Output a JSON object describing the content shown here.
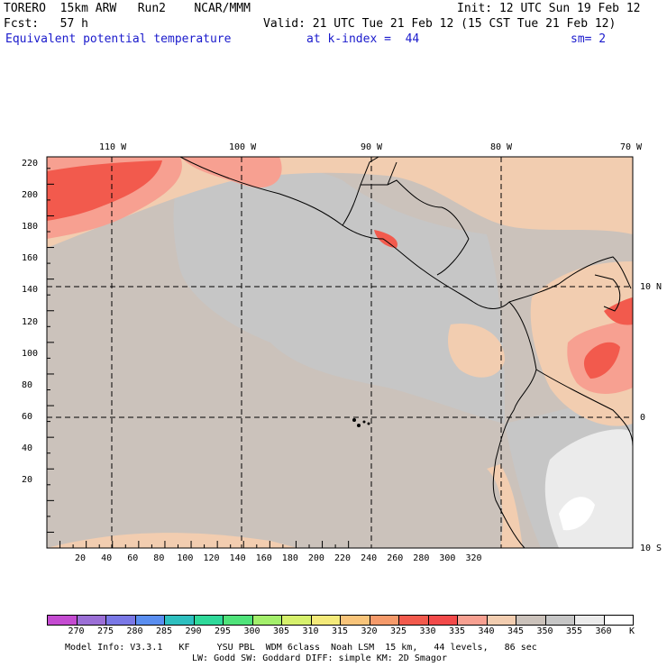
{
  "header": {
    "line1_left": "TORERO  15km ARW   Run2    NCAR/MMM",
    "line1_right": "Init: 12 UTC Sun 19 Feb 12",
    "line2_left": "Fcst:   57 h",
    "line2_right": "Valid: 21 UTC Tue 21 Feb 12 (15 CST Tue 21 Feb 12)",
    "field": "Equivalent potential temperature",
    "level": "at k-index =  44",
    "smoothing": "sm= 2"
  },
  "map": {
    "top_lon_labels": [
      "110 W",
      "100 W",
      "90 W",
      "80 W",
      "70 W"
    ],
    "right_lat_labels": [
      "10 N",
      "0",
      "10 S"
    ],
    "left_grid_labels": [
      "220",
      "200",
      "180",
      "160",
      "140",
      "120",
      "100",
      "80",
      "60",
      "40",
      "20"
    ],
    "bottom_grid_labels": [
      "20",
      "40",
      "60",
      "80",
      "100",
      "120",
      "140",
      "160",
      "180",
      "200",
      "220",
      "240",
      "260",
      "280",
      "300",
      "320"
    ]
  },
  "colorbar": {
    "unit": "K",
    "labels": [
      "270",
      "275",
      "280",
      "285",
      "290",
      "295",
      "300",
      "305",
      "310",
      "315",
      "320",
      "325",
      "330",
      "335",
      "340",
      "345",
      "350",
      "355",
      "360"
    ],
    "colors": [
      "#c44bd1",
      "#9b6fd6",
      "#7a78e6",
      "#5a8ef0",
      "#2ebfbf",
      "#2fd99a",
      "#4fe37a",
      "#a3ef6b",
      "#d6f06c",
      "#f4ea7a",
      "#f8c47a",
      "#f59a6a",
      "#f25a4d",
      "#f24a4a",
      "#f7a091",
      "#f2cdb0",
      "#cbc2bb",
      "#c6c6c6",
      "#ebebeb",
      "#ffffff"
    ]
  },
  "footer": {
    "line1": "Model Info: V3.3.1   KF     YSU PBL  WDM 6class  Noah LSM  15 km,   44 levels,   86 sec",
    "line2": "LW: Godd SW: Goddard DIFF: simple KM: 2D Smagor"
  }
}
